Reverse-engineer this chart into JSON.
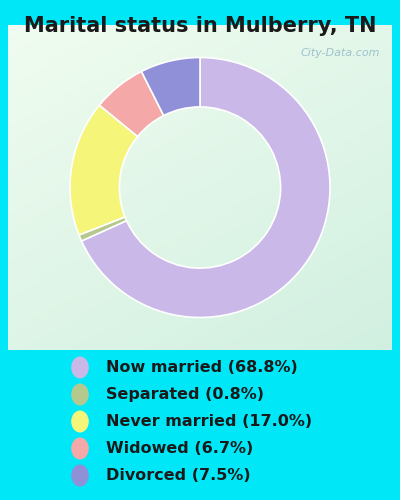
{
  "title": "Marital status in Mulberry, TN",
  "slices": [
    68.8,
    0.8,
    17.0,
    6.7,
    7.5
  ],
  "labels": [
    "Now married (68.8%)",
    "Separated (0.8%)",
    "Never married (17.0%)",
    "Widowed (6.7%)",
    "Divorced (7.5%)"
  ],
  "colors": [
    "#c9b8e8",
    "#b5c98e",
    "#f5f57a",
    "#f5a8a8",
    "#9090d8"
  ],
  "outer_background": "#00e8f8",
  "chart_bg_left": "#e8f8e8",
  "chart_bg_right": "#d8f0e0",
  "title_fontsize": 15,
  "legend_fontsize": 11.5,
  "watermark": "City-Data.com",
  "donut_width": 0.38
}
